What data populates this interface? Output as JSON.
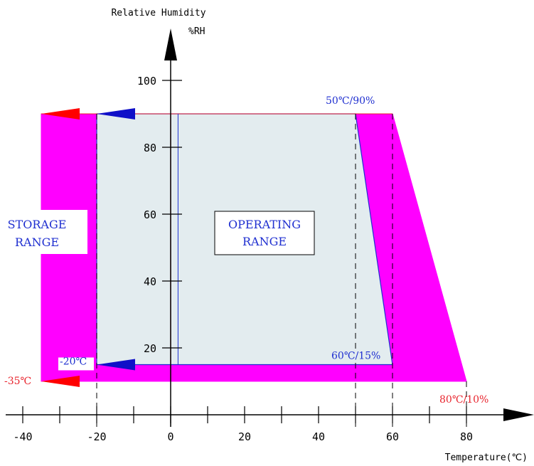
{
  "chart_data": {
    "type": "area",
    "title": "",
    "ylabel": "Relative Humidity",
    "yunit": "%RH",
    "xlabel": "Temperature(℃)",
    "xlim": [
      -40,
      90
    ],
    "ylim": [
      0,
      100
    ],
    "x_ticks": [
      -40,
      -20,
      0,
      20,
      40,
      60,
      80
    ],
    "y_ticks": [
      20,
      40,
      60,
      80,
      100
    ],
    "regions": [
      {
        "name": "STORAGE RANGE",
        "color": "#ff00ff",
        "points": [
          [
            -35,
            90
          ],
          [
            60,
            90
          ],
          [
            80,
            10
          ],
          [
            -35,
            10
          ]
        ]
      },
      {
        "name": "OPERATING RANGE",
        "color": "#e3ecef",
        "points": [
          [
            -20,
            90
          ],
          [
            50,
            90
          ],
          [
            60,
            15
          ],
          [
            -20,
            15
          ]
        ]
      }
    ],
    "annotations": [
      {
        "text": "50℃/90%",
        "x": 50,
        "y": 90,
        "color": "#1f2fd0"
      },
      {
        "text": "60℃/15%",
        "x": 60,
        "y": 15,
        "color": "#1f2fd0"
      },
      {
        "text": "80℃/10%",
        "x": 80,
        "y": 10,
        "color": "#e8242d"
      },
      {
        "text": "-20℃",
        "x": -20,
        "y": 15,
        "color": "#1f2fd0"
      },
      {
        "text": "-35℃",
        "x": -35,
        "y": 10,
        "color": "#e8242d"
      }
    ],
    "range_labels": {
      "storage": [
        "STORAGE",
        "RANGE"
      ],
      "operating": [
        "OPERATING",
        "RANGE"
      ]
    },
    "colors": {
      "storage_fill": "#ff00ff",
      "operating_fill": "#e3ecef",
      "operating_border": "#1f2fd0",
      "arrow_red": "#ff0000",
      "arrow_blue": "#1010c8",
      "axis": "#000000"
    }
  }
}
